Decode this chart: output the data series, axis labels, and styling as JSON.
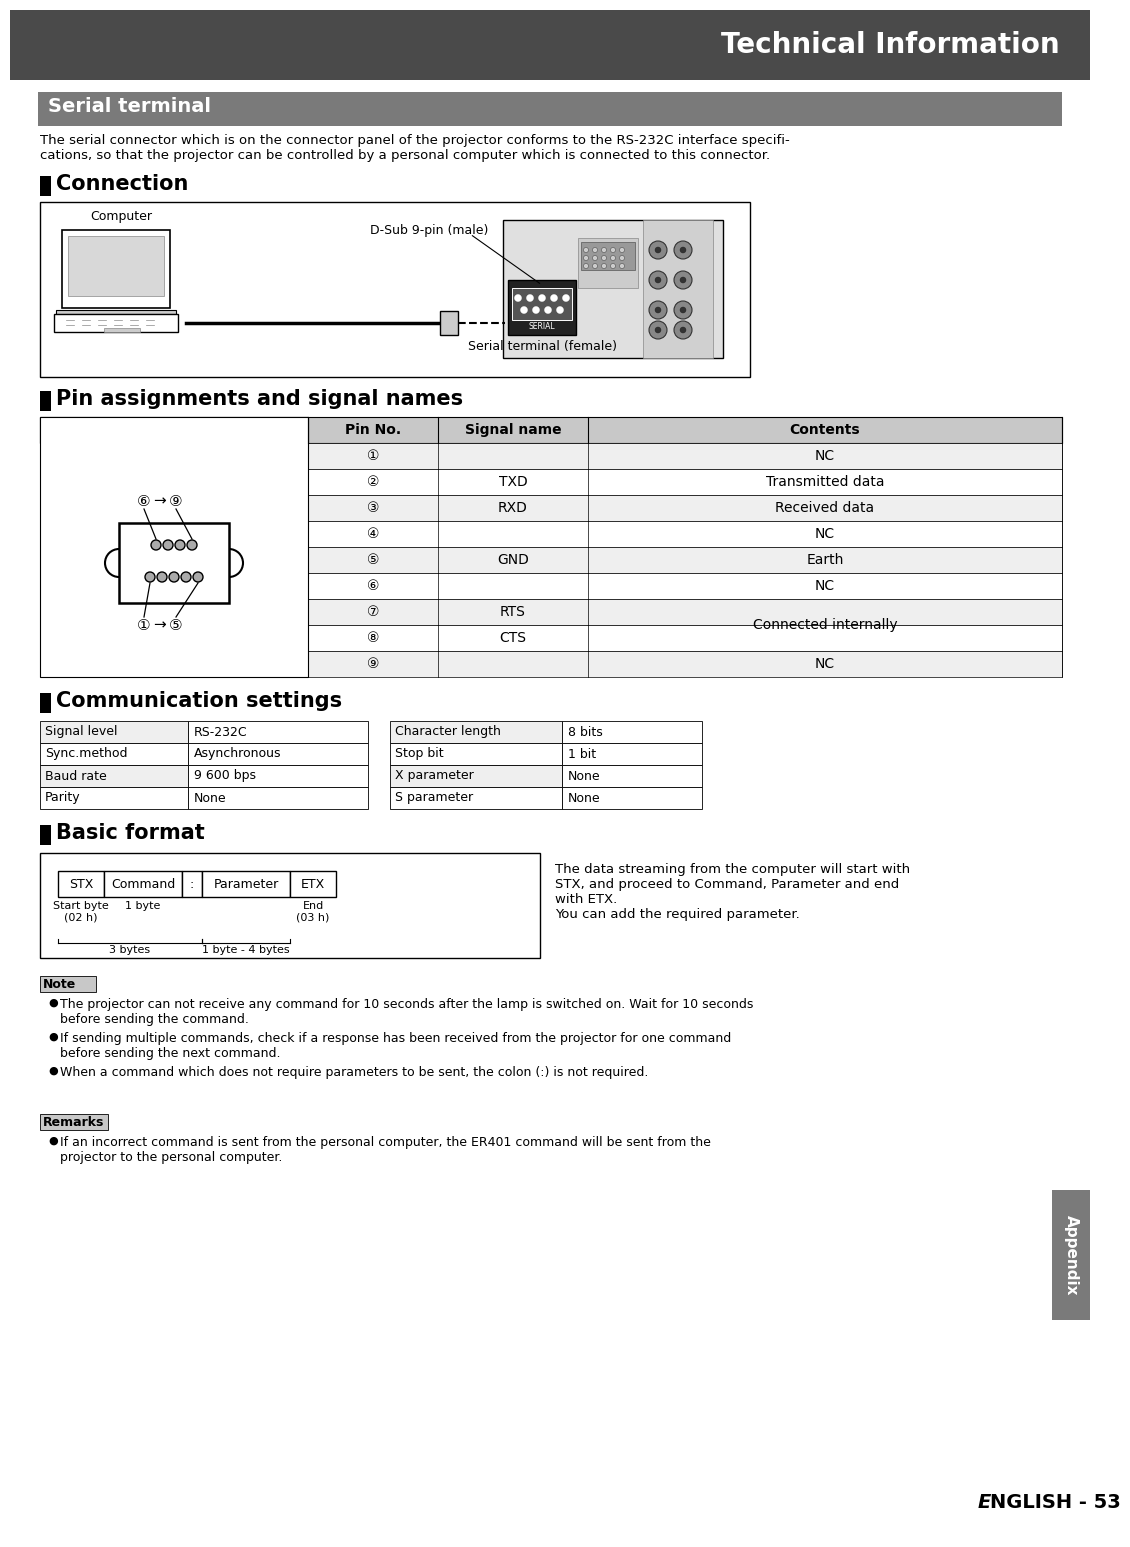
{
  "title": "Technical Information",
  "section_serial": "Serial terminal",
  "intro_text": "The serial connector which is on the connector panel of the projector conforms to the RS-232C interface specifi-\ncations, so that the projector can be controlled by a personal computer which is connected to this connector.",
  "section_connection": "Connection",
  "label_computer": "Computer",
  "label_dsub": "D-Sub 9-pin (male)",
  "label_serial_female": "Serial terminal (female)",
  "section_pin": "Pin assignments and signal names",
  "pin_table_headers": [
    "Pin No.",
    "Signal name",
    "Contents"
  ],
  "pin_rows": [
    [
      "①",
      "",
      "NC"
    ],
    [
      "②",
      "TXD",
      "Transmitted data"
    ],
    [
      "③",
      "RXD",
      "Received data"
    ],
    [
      "④",
      "",
      "NC"
    ],
    [
      "⑤",
      "GND",
      "Earth"
    ],
    [
      "⑥",
      "",
      "NC"
    ],
    [
      "⑦",
      "RTS",
      "Connected internally"
    ],
    [
      "⑧",
      "CTS",
      "Connected internally"
    ],
    [
      "⑨",
      "",
      "NC"
    ]
  ],
  "section_comm": "Communication settings",
  "comm_left": [
    [
      "Signal level",
      "RS-232C"
    ],
    [
      "Sync.method",
      "Asynchronous"
    ],
    [
      "Baud rate",
      "9 600 bps"
    ],
    [
      "Parity",
      "None"
    ]
  ],
  "comm_right": [
    [
      "Character length",
      "8 bits"
    ],
    [
      "Stop bit",
      "1 bit"
    ],
    [
      "X parameter",
      "None"
    ],
    [
      "S parameter",
      "None"
    ]
  ],
  "section_basic": "Basic format",
  "basic_boxes": [
    "STX",
    "Command",
    ":",
    "Parameter",
    "ETX"
  ],
  "basic_desc": "The data streaming from the computer will start with\nSTX, and proceed to Command, Parameter and end\nwith ETX.\nYou can add the required parameter.",
  "note_title": "Note",
  "note_bullets": [
    "The projector can not receive any command for 10 seconds after the lamp is switched on. Wait for 10 seconds\nbefore sending the command.",
    "If sending multiple commands, check if a response has been received from the projector for one command\nbefore sending the next command.",
    "When a command which does not require parameters to be sent, the colon (:) is not required."
  ],
  "remarks_title": "Remarks",
  "remarks_bullets": [
    "If an incorrect command is sent from the personal computer, the ER401 command will be sent from the\nprojector to the personal computer."
  ],
  "appendix_label": "Appendix",
  "page_label": "E",
  "page_label2": "NGLISH - 53",
  "header_bg": "#4a4a4a",
  "section_bg": "#7a7a7a",
  "table_header_bg": "#c8c8c8",
  "table_row_bg": "#efefef",
  "table_alt_bg": "#ffffff",
  "note_bg": "#c8c8c8",
  "remarks_bg": "#c8c8c8",
  "appendix_bg": "#7a7a7a"
}
